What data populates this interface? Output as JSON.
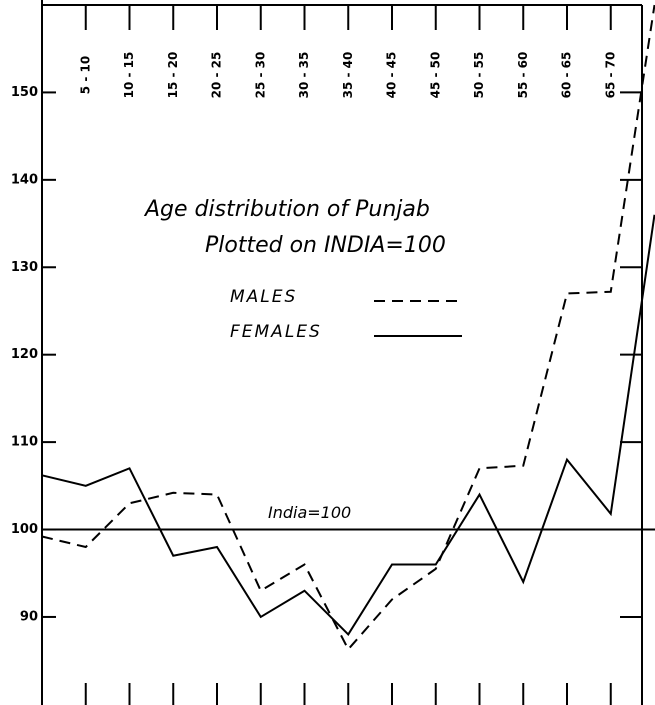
{
  "chart_data": {
    "type": "line",
    "title": "Age distribution of Punjab",
    "subtitle": "Plotted on INDIA=100",
    "categories": [
      null,
      "5 - 10",
      "10 - 15",
      "15 - 20",
      "20 - 25",
      "25 - 30",
      "30 - 35",
      "35 - 40",
      "40 - 45",
      "45 - 50",
      "50 - 55",
      "55 - 60",
      "60 - 65",
      "65 - 70",
      null
    ],
    "series": [
      {
        "name": "MALES",
        "color": "#000000",
        "dashed": true,
        "values": [
          99.2,
          98,
          103,
          104.2,
          104,
          93,
          96,
          86.3,
          92,
          95.5,
          107,
          107.3,
          127,
          127.2,
          160
        ]
      },
      {
        "name": "FEMALES",
        "color": "#000000",
        "dashed": false,
        "values": [
          106.2,
          105,
          107,
          97,
          98,
          90,
          93,
          88,
          96,
          96,
          104,
          94,
          108,
          101.8,
          136
        ]
      }
    ],
    "reference_line": {
      "value": 100,
      "label": "India=100"
    },
    "ylim": [
      80.5,
      160
    ],
    "yticks": [
      90,
      100,
      110,
      120,
      130,
      140,
      150
    ]
  }
}
